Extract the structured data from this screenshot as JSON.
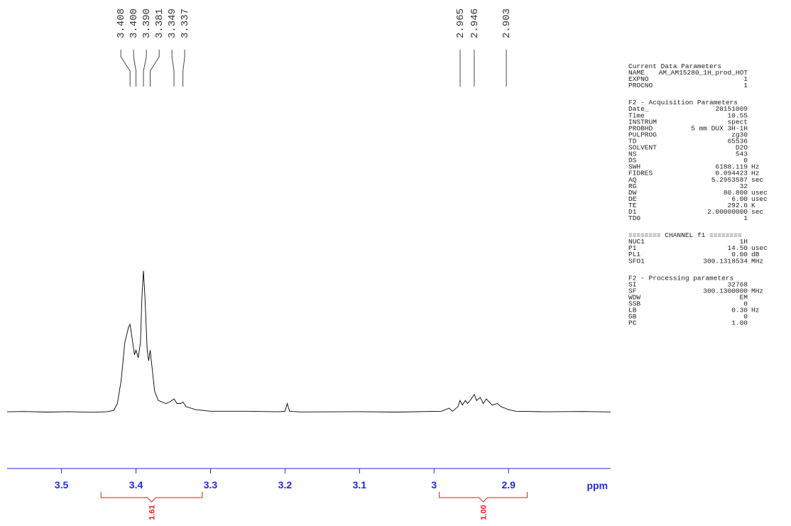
{
  "chart_data": {
    "type": "line",
    "color": "#000000",
    "axis_color": "#1f2bd6",
    "integral_color": "#d62020",
    "x_label": "ppm",
    "xlim": [
      3.573,
      2.763
    ],
    "xticks": [
      3.5,
      3.4,
      3.3,
      3.2,
      3.1,
      3.0,
      2.9
    ],
    "ylim": [
      0,
      100
    ],
    "x": [
      3.573,
      3.55,
      3.52,
      3.49,
      3.46,
      3.44,
      3.43,
      3.425,
      3.42,
      3.415,
      3.41,
      3.408,
      3.405,
      3.402,
      3.4,
      3.397,
      3.394,
      3.392,
      3.39,
      3.388,
      3.385,
      3.383,
      3.381,
      3.379,
      3.375,
      3.37,
      3.36,
      3.355,
      3.349,
      3.345,
      3.34,
      3.337,
      3.333,
      3.32,
      3.3,
      3.25,
      3.21,
      3.2,
      3.197,
      3.194,
      3.18,
      3.1,
      3.05,
      2.99,
      2.98,
      2.975,
      2.968,
      2.965,
      2.962,
      2.958,
      2.955,
      2.95,
      2.946,
      2.943,
      2.938,
      2.934,
      2.93,
      2.926,
      2.922,
      2.915,
      2.91,
      2.905,
      2.9,
      2.89,
      2.85,
      2.8,
      2.763
    ],
    "values": [
      4.6,
      4.8,
      4.4,
      4.7,
      4.3,
      4.6,
      5.5,
      10,
      25,
      50,
      60,
      62,
      52,
      42,
      45,
      40,
      50,
      80,
      97,
      80,
      45,
      38,
      45,
      36,
      18,
      12,
      10,
      11,
      13,
      10,
      10,
      11,
      8,
      6,
      5,
      5,
      4.6,
      5,
      10,
      5,
      4.5,
      4.7,
      4.4,
      5,
      7,
      5,
      8,
      12,
      9,
      12,
      10,
      13,
      16,
      12,
      14,
      10,
      13,
      11,
      9,
      10,
      8,
      7,
      6,
      5,
      4.6,
      4.8,
      4.5
    ],
    "peaks": [
      {
        "value": 3.408,
        "label": "3.408"
      },
      {
        "value": 3.4,
        "label": "3.400"
      },
      {
        "value": 3.39,
        "label": "3.390"
      },
      {
        "value": 3.381,
        "label": "3.381"
      },
      {
        "value": 3.349,
        "label": "3.349"
      },
      {
        "value": 3.337,
        "label": "3.337"
      },
      {
        "value": 2.965,
        "label": "2.965"
      },
      {
        "value": 2.946,
        "label": "2.946"
      },
      {
        "value": 2.903,
        "label": "2.903"
      }
    ],
    "integrals": [
      {
        "range": [
          3.447,
          3.311
        ],
        "value": 1.61
      },
      {
        "range": [
          2.993,
          2.875
        ],
        "value": 1,
        "label": "1.00"
      }
    ]
  },
  "parameters": {
    "sections": [
      {
        "title": "Current Data Parameters",
        "rows": [
          [
            "NAME",
            "AM_AM15280_1H_prod_HOT"
          ],
          [
            "EXPNO",
            "1"
          ],
          [
            "PROCNO",
            "1"
          ]
        ]
      },
      {
        "title": "F2 - Acquisition Parameters",
        "rows": [
          [
            "Date_",
            "20151009"
          ],
          [
            "Time",
            "10.55"
          ],
          [
            "INSTRUM",
            "spect"
          ],
          [
            "PROBHD",
            "5 mm DUX 3H-1H"
          ],
          [
            "PULPROG",
            "zg30"
          ],
          [
            "TD",
            "65536"
          ],
          [
            "SOLVENT",
            "D2O"
          ],
          [
            "NS",
            "543"
          ],
          [
            "DS",
            "0"
          ],
          [
            "SWH",
            "6188.119",
            "Hz"
          ],
          [
            "FIDRES",
            "0.094423",
            "Hz"
          ],
          [
            "AQ",
            "5.2953587",
            "sec"
          ],
          [
            "RG",
            "32"
          ],
          [
            "DW",
            "80.800",
            "usec"
          ],
          [
            "DE",
            "6.00",
            "usec"
          ],
          [
            "TE",
            "292.6",
            "K"
          ],
          [
            "D1",
            "2.00000000",
            "sec"
          ],
          [
            "TD0",
            "1"
          ]
        ]
      },
      {
        "title": "======== CHANNEL f1 ========",
        "rows": [
          [
            "NUC1",
            "1H"
          ],
          [
            "P1",
            "14.50",
            "usec"
          ],
          [
            "PL1",
            "0.00",
            "dB"
          ],
          [
            "SFO1",
            "300.1318534",
            "MHz"
          ]
        ]
      },
      {
        "title": "F2 - Processing parameters",
        "rows": [
          [
            "SI",
            "32768"
          ],
          [
            "SF",
            "300.1300000",
            "MHz"
          ],
          [
            "WDW",
            "EM"
          ],
          [
            "SSB",
            "0"
          ],
          [
            "LB",
            "0.30",
            "Hz"
          ],
          [
            "GB",
            "0"
          ],
          [
            "PC",
            "1.00"
          ]
        ]
      }
    ]
  }
}
